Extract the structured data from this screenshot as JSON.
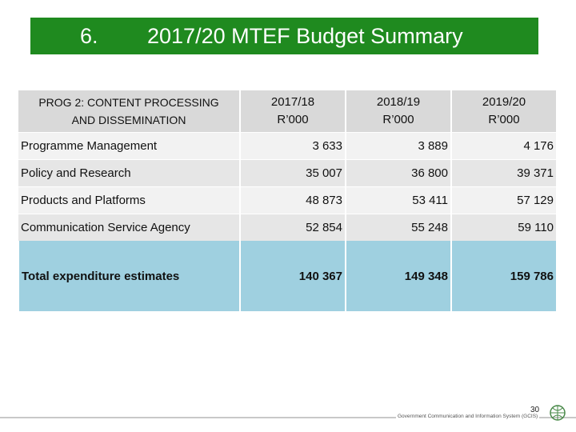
{
  "header": {
    "number": "6.",
    "title": "2017/20 MTEF Budget Summary"
  },
  "table": {
    "columns": [
      "PROG 2: CONTENT PROCESSING AND DISSEMINATION",
      "2017/18 R’000",
      "2018/19 R’000",
      "2019/20 R’000"
    ],
    "rows": [
      [
        "Programme Management",
        "3 633",
        "3 889",
        "4 176"
      ],
      [
        "Policy and Research",
        "35 007",
        "36 800",
        "39 371"
      ],
      [
        "Products and Platforms",
        "48 873",
        "53 411",
        "57 129"
      ],
      [
        "Communication Service Agency",
        "52 854",
        "55 248",
        "59 110"
      ]
    ],
    "total": [
      "Total expenditure estimates",
      "140 367",
      "149 348",
      "159 786"
    ]
  },
  "footer": {
    "page": "30",
    "organisation": "Government Communication and Information System (GCIS)"
  }
}
